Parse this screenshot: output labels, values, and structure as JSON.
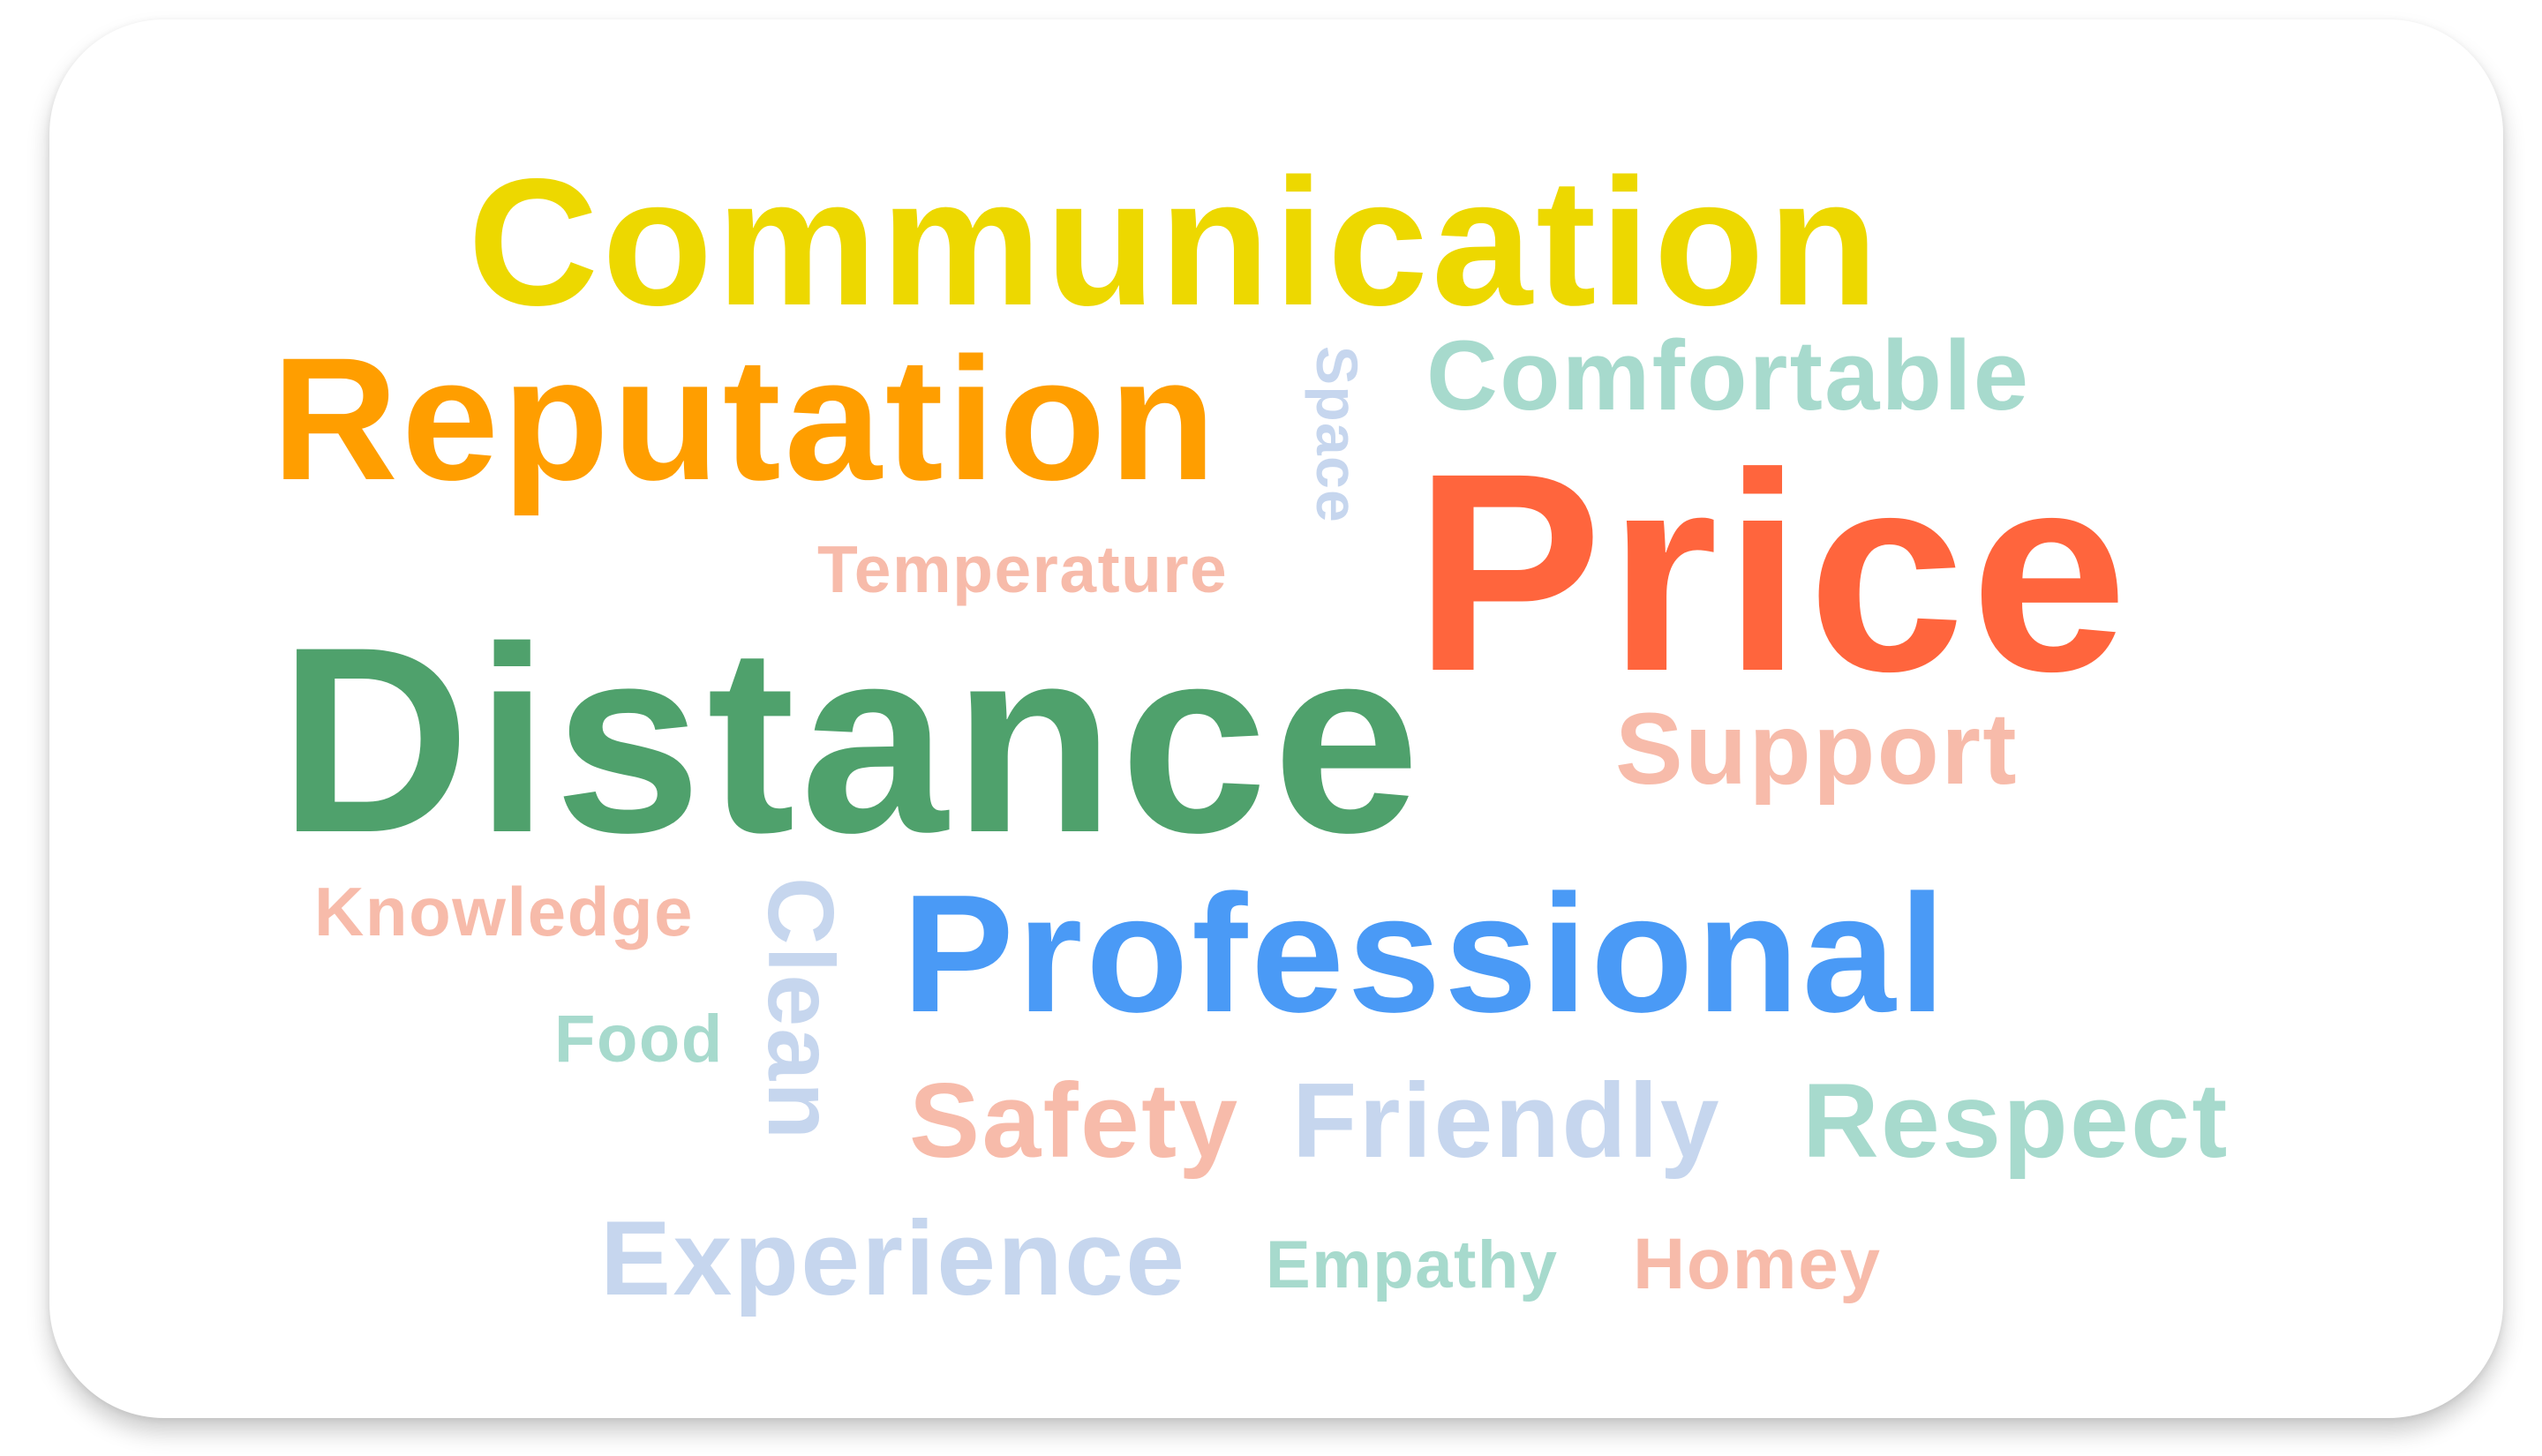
{
  "words": [
    {
      "text": "Communication",
      "color": "#EDD800"
    },
    {
      "text": "Reputation",
      "color": "#FF9E00"
    },
    {
      "text": "Space",
      "color": "#C6D6EE"
    },
    {
      "text": "Comfortable",
      "color": "#A7DACD"
    },
    {
      "text": "Price",
      "color": "#FF653D"
    },
    {
      "text": "Temperature",
      "color": "#F7BBAA"
    },
    {
      "text": "Distance",
      "color": "#4FA16C"
    },
    {
      "text": "Support",
      "color": "#F7BBAA"
    },
    {
      "text": "Knowledge",
      "color": "#F7BBAA"
    },
    {
      "text": "Clean",
      "color": "#C6D6EE"
    },
    {
      "text": "Professional",
      "color": "#4A9AF6"
    },
    {
      "text": "Food",
      "color": "#A7DACD"
    },
    {
      "text": "Safety",
      "color": "#F7BBAA"
    },
    {
      "text": "Friendly",
      "color": "#C6D6EE"
    },
    {
      "text": "Respect",
      "color": "#A7DACD"
    },
    {
      "text": "Experience",
      "color": "#C6D6EE"
    },
    {
      "text": "Empathy",
      "color": "#A7DACD"
    },
    {
      "text": "Homey",
      "color": "#F7BBAA"
    }
  ]
}
